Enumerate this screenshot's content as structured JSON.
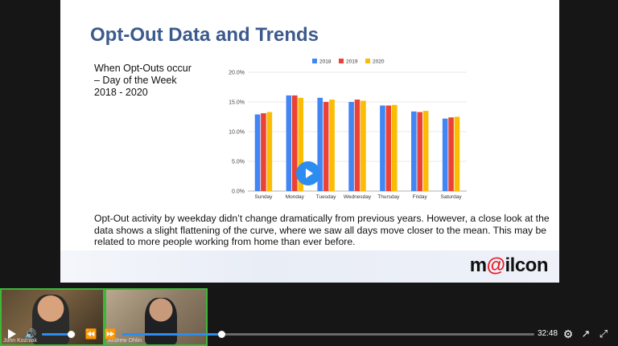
{
  "slide": {
    "title": "Opt-Out Data and Trends",
    "subtitle": "When Opt-Outs occur – Day of the Week 2018 - 2020",
    "body": "Opt-Out activity by weekday didn’t change dramatically from previous years. However, a close look at the data shows a slight flattening of the curve, where we saw all days move closer to the mean. This may be related to more people working from home than ever before.",
    "logo_prefix": "m",
    "logo_at": "@",
    "logo_suffix": "ilcon"
  },
  "chart_data": {
    "type": "bar",
    "categories": [
      "Sunday",
      "Monday",
      "Tuesday",
      "Wednesday",
      "Thursday",
      "Friday",
      "Saturday"
    ],
    "series": [
      {
        "name": "2018",
        "color": "#4285f4",
        "values": [
          12.9,
          16.1,
          15.7,
          15.0,
          14.4,
          13.4,
          12.2
        ]
      },
      {
        "name": "2019",
        "color": "#ea4335",
        "values": [
          13.1,
          16.1,
          15.0,
          15.4,
          14.4,
          13.3,
          12.4
        ]
      },
      {
        "name": "2020",
        "color": "#fbbc04",
        "values": [
          13.3,
          15.7,
          15.4,
          15.2,
          14.5,
          13.5,
          12.5
        ]
      }
    ],
    "yticks": [
      "0.0%",
      "5.0%",
      "10.0%",
      "15.0%",
      "20.0%"
    ],
    "ylim": [
      0,
      20
    ],
    "legend": "top-center",
    "grid": true
  },
  "webcams": [
    {
      "name": "John Kozniak"
    },
    {
      "name": "Andrew Ohlin"
    }
  ],
  "player": {
    "time": "32:48",
    "volume": 0.85,
    "progress": 0.24,
    "icons": {
      "play": "play-icon",
      "volume": "volume-icon",
      "rewind": "rewind-icon",
      "forward": "fast-forward-icon",
      "settings": "gear-icon",
      "popout": "popout-icon",
      "fullscreen": "fullscreen-icon"
    }
  }
}
